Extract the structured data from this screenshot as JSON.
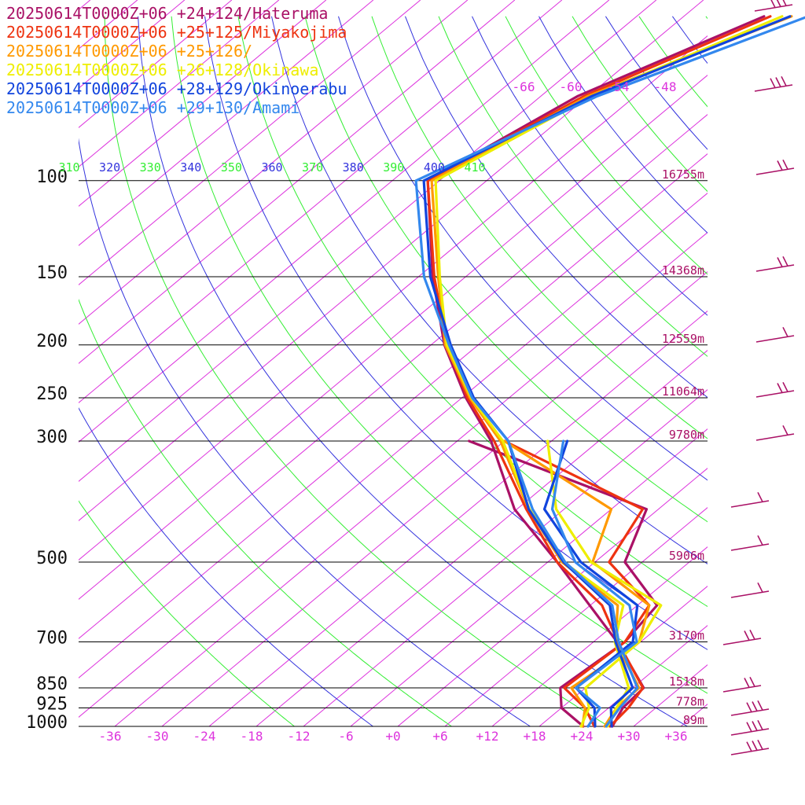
{
  "chart_data": {
    "type": "line",
    "title": "",
    "xlabel": "",
    "ylabel": "",
    "legend_position": "top-left",
    "x_ticks": [
      "-36",
      "-30",
      "-24",
      "-18",
      "-12",
      "-6",
      "+0",
      "+6",
      "+12",
      "+18",
      "+24",
      "+30",
      "+36"
    ],
    "pressure_levels": [
      {
        "p": 100,
        "label": "100",
        "height": "16755m"
      },
      {
        "p": 150,
        "label": "150",
        "height": "14368m"
      },
      {
        "p": 200,
        "label": "200",
        "height": "12559m"
      },
      {
        "p": 250,
        "label": "250",
        "height": "11064m"
      },
      {
        "p": 300,
        "label": "300",
        "height": "9780m"
      },
      {
        "p": 500,
        "label": "500",
        "height": "5906m"
      },
      {
        "p": 700,
        "label": "700",
        "height": "3170m"
      },
      {
        "p": 850,
        "label": "850",
        "height": "1518m"
      },
      {
        "p": 925,
        "label": "925",
        "height": "778m"
      },
      {
        "p": 1000,
        "label": "1000",
        "height": "89m"
      }
    ],
    "theta_labels": [
      {
        "label": "310",
        "color": "#33ee33"
      },
      {
        "label": "320",
        "color": "#3333dd"
      },
      {
        "label": "330",
        "color": "#33ee33"
      },
      {
        "label": "340",
        "color": "#3333dd"
      },
      {
        "label": "350",
        "color": "#33ee33"
      },
      {
        "label": "360",
        "color": "#3333dd"
      },
      {
        "label": "370",
        "color": "#33ee33"
      },
      {
        "label": "380",
        "color": "#3333dd"
      },
      {
        "label": "390",
        "color": "#33ee33"
      },
      {
        "label": "400",
        "color": "#3333dd"
      },
      {
        "label": "410",
        "color": "#33ee33"
      }
    ],
    "isotherm_labels": [
      "-66",
      "-60",
      "-54",
      "-48"
    ],
    "series": [
      {
        "name": "20250614T0000Z+06 +24+124/Hateruma",
        "color": "#aa1166",
        "temperature": [
          [
            1000,
            27.3
          ],
          [
            925,
            25.8
          ],
          [
            850,
            25.4
          ],
          [
            700,
            15.0
          ],
          [
            500,
            -4.8
          ],
          [
            400,
            -18.3
          ],
          [
            300,
            -31.7
          ],
          [
            250,
            -41.5
          ],
          [
            200,
            -52.3
          ],
          [
            150,
            -64.2
          ],
          [
            100,
            -79.5
          ],
          [
            70,
            -73.3
          ],
          [
            50,
            -61.8
          ]
        ],
        "dewpoint": [
          [
            1000,
            23.6
          ],
          [
            925,
            18.0
          ],
          [
            850,
            14.8
          ],
          [
            700,
            16.0
          ],
          [
            600,
            14.5
          ],
          [
            500,
            3.8
          ],
          [
            400,
            -1.5
          ],
          [
            300,
            -34.5
          ]
        ]
      },
      {
        "name": "20250614T0000Z+06 +25+125/Miyakojima",
        "color": "#ee3311",
        "temperature": [
          [
            1000,
            27.0
          ],
          [
            925,
            26.5
          ],
          [
            850,
            25.3
          ],
          [
            700,
            15.1
          ],
          [
            600,
            7.5
          ],
          [
            500,
            -4.8
          ],
          [
            400,
            -16.8
          ],
          [
            300,
            -31.3
          ],
          [
            250,
            -41.3
          ],
          [
            200,
            -52.0
          ],
          [
            150,
            -64.0
          ],
          [
            100,
            -79.5
          ],
          [
            70,
            -72.5
          ],
          [
            50,
            -61.0
          ]
        ],
        "dewpoint": [
          [
            1000,
            25.0
          ],
          [
            925,
            21.0
          ],
          [
            850,
            15.3
          ],
          [
            700,
            16.0
          ],
          [
            600,
            13.5
          ],
          [
            500,
            1.8
          ],
          [
            400,
            -2.0
          ],
          [
            300,
            -30.0
          ]
        ]
      },
      {
        "name": "20250614T0000Z+06 +25+126/",
        "color": "#ff9900",
        "temperature": [
          [
            1000,
            26.3
          ],
          [
            925,
            25.0
          ],
          [
            850,
            24.8
          ],
          [
            700,
            14.8
          ],
          [
            600,
            9.5
          ],
          [
            500,
            -4.2
          ],
          [
            400,
            -16.5
          ],
          [
            300,
            -30.5
          ],
          [
            250,
            -41.0
          ],
          [
            200,
            -52.2
          ],
          [
            150,
            -63.5
          ],
          [
            100,
            -79.0
          ],
          [
            70,
            -72.0
          ],
          [
            50,
            -58.3
          ]
        ],
        "dewpoint": [
          [
            1000,
            23.5
          ],
          [
            925,
            21.0
          ],
          [
            850,
            16.2
          ],
          [
            700,
            17.8
          ],
          [
            600,
            13.5
          ],
          [
            500,
            -0.3
          ],
          [
            400,
            -6.0
          ],
          [
            300,
            -30.0
          ]
        ]
      },
      {
        "name": "20250614T0000Z+06 +26+128/Okinawa",
        "color": "#eeee00",
        "temperature": [
          [
            1000,
            26.7
          ],
          [
            925,
            25.0
          ],
          [
            850,
            23.5
          ],
          [
            700,
            14.7
          ],
          [
            600,
            10.2
          ],
          [
            500,
            -4.0
          ],
          [
            400,
            -16.4
          ],
          [
            300,
            -30.2
          ],
          [
            250,
            -40.8
          ],
          [
            200,
            -52.0
          ],
          [
            150,
            -63.3
          ],
          [
            100,
            -78.5
          ],
          [
            70,
            -71.5
          ],
          [
            50,
            -59.5
          ]
        ],
        "dewpoint": [
          [
            1000,
            23.3
          ],
          [
            925,
            21.5
          ],
          [
            850,
            18.0
          ],
          [
            700,
            17.8
          ],
          [
            600,
            15.0
          ],
          [
            500,
            -0.5
          ],
          [
            400,
            -13.0
          ],
          [
            300,
            -24.5
          ]
        ]
      },
      {
        "name": "20250614T0000Z+06 +28+129/Okinoerabu",
        "color": "#1144dd",
        "temperature": [
          [
            1000,
            27.2
          ],
          [
            925,
            24.3
          ],
          [
            850,
            24.0
          ],
          [
            700,
            14.8
          ],
          [
            600,
            8.5
          ],
          [
            500,
            -4.0
          ],
          [
            400,
            -16.5
          ],
          [
            300,
            -29.5
          ],
          [
            250,
            -40.5
          ],
          [
            200,
            -51.5
          ],
          [
            150,
            -64.5
          ],
          [
            100,
            -80.0
          ],
          [
            70,
            -71.5
          ],
          [
            50,
            -58.5
          ]
        ],
        "dewpoint": [
          [
            1000,
            25.1
          ],
          [
            925,
            22.2
          ],
          [
            850,
            16.8
          ],
          [
            700,
            17.0
          ],
          [
            600,
            12.0
          ],
          [
            500,
            -1.8
          ],
          [
            400,
            -14.5
          ],
          [
            300,
            -22.0
          ]
        ]
      },
      {
        "name": "20250614T0000Z+06 +29+130/Amami",
        "color": "#3388ee",
        "temperature": [
          [
            1000,
            26.5
          ],
          [
            925,
            25.4
          ],
          [
            850,
            24.6
          ],
          [
            700,
            15.2
          ],
          [
            600,
            8.8
          ],
          [
            500,
            -3.8
          ],
          [
            400,
            -16.0
          ],
          [
            300,
            -29.5
          ],
          [
            250,
            -40.7
          ],
          [
            200,
            -51.7
          ],
          [
            150,
            -65.3
          ],
          [
            100,
            -81.0
          ],
          [
            70,
            -70.8
          ],
          [
            50,
            -56.2
          ]
        ],
        "dewpoint": [
          [
            1000,
            24.2
          ],
          [
            925,
            22.9
          ],
          [
            850,
            16.8
          ],
          [
            700,
            17.5
          ],
          [
            600,
            11.0
          ],
          [
            500,
            -2.5
          ],
          [
            400,
            -13.5
          ],
          [
            300,
            -22.5
          ]
        ]
      }
    ],
    "wind_barbs_color": "#aa1166"
  }
}
